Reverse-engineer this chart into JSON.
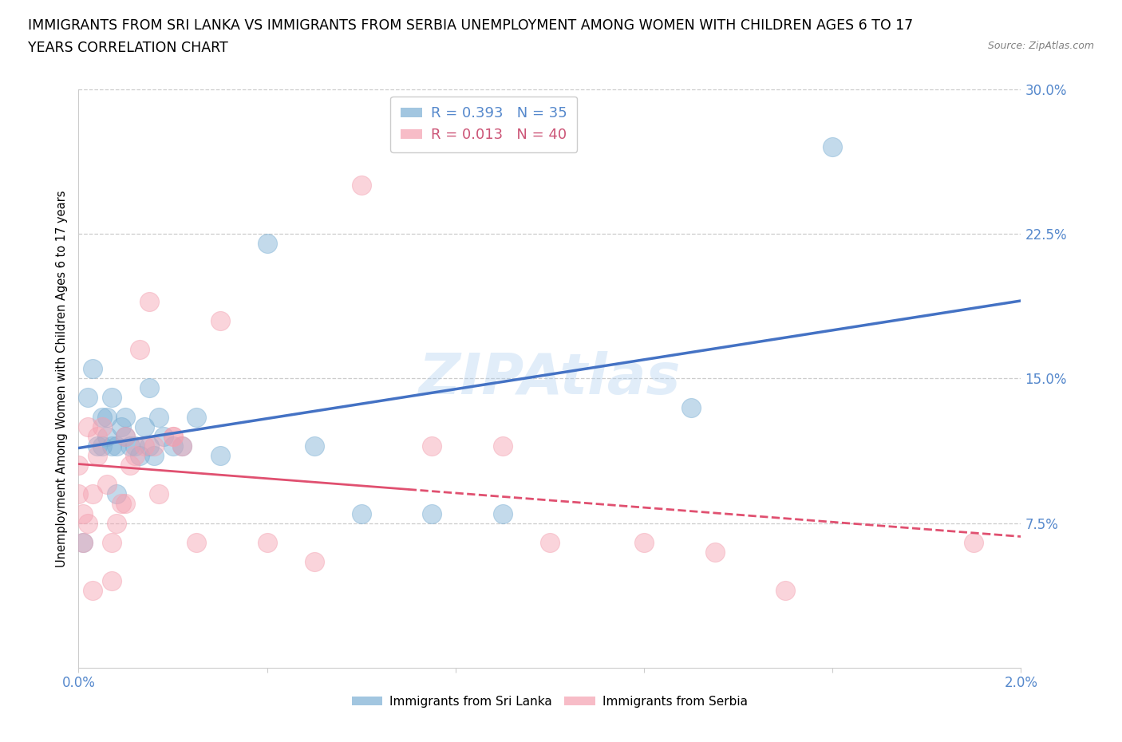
{
  "title_line1": "IMMIGRANTS FROM SRI LANKA VS IMMIGRANTS FROM SERBIA UNEMPLOYMENT AMONG WOMEN WITH CHILDREN AGES 6 TO 17",
  "title_line2": "YEARS CORRELATION CHART",
  "source": "Source: ZipAtlas.com",
  "ylabel": "Unemployment Among Women with Children Ages 6 to 17 years",
  "xlim": [
    0.0,
    0.02
  ],
  "ylim": [
    0.0,
    0.3
  ],
  "yticks": [
    0.075,
    0.15,
    0.225,
    0.3
  ],
  "ytick_labels": [
    "7.5%",
    "15.0%",
    "22.5%",
    "30.0%"
  ],
  "xticks": [
    0.0,
    0.004,
    0.008,
    0.012,
    0.016,
    0.02
  ],
  "xtick_labels": [
    "0.0%",
    "",
    "",
    "",
    "",
    "2.0%"
  ],
  "sri_lanka_color": "#7bafd4",
  "serbia_color": "#f4a0b0",
  "sri_lanka_label": "Immigrants from Sri Lanka",
  "serbia_label": "Immigrants from Serbia",
  "sri_lanka_R": "0.393",
  "sri_lanka_N": "35",
  "serbia_R": "0.013",
  "serbia_N": "40",
  "watermark": "ZIPAtlas",
  "reg_line_color_sl": "#4472c4",
  "reg_line_color_sr": "#e05070",
  "sri_lanka_x": [
    0.0001,
    0.0002,
    0.0003,
    0.0004,
    0.0005,
    0.0005,
    0.0006,
    0.0006,
    0.0007,
    0.0007,
    0.0008,
    0.0008,
    0.0009,
    0.001,
    0.001,
    0.0011,
    0.0012,
    0.0013,
    0.0014,
    0.0015,
    0.0015,
    0.0016,
    0.0017,
    0.0018,
    0.002,
    0.0022,
    0.0025,
    0.003,
    0.004,
    0.005,
    0.006,
    0.0075,
    0.009,
    0.013,
    0.016
  ],
  "sri_lanka_y": [
    0.065,
    0.14,
    0.155,
    0.115,
    0.115,
    0.13,
    0.12,
    0.13,
    0.115,
    0.14,
    0.115,
    0.09,
    0.125,
    0.12,
    0.13,
    0.115,
    0.115,
    0.11,
    0.125,
    0.115,
    0.145,
    0.11,
    0.13,
    0.12,
    0.115,
    0.115,
    0.13,
    0.11,
    0.22,
    0.115,
    0.08,
    0.08,
    0.08,
    0.135,
    0.27
  ],
  "serbia_x": [
    0.0,
    0.0,
    0.0001,
    0.0001,
    0.0002,
    0.0002,
    0.0003,
    0.0003,
    0.0004,
    0.0004,
    0.0005,
    0.0006,
    0.0007,
    0.0007,
    0.0008,
    0.0009,
    0.001,
    0.001,
    0.0011,
    0.0012,
    0.0013,
    0.0014,
    0.0015,
    0.0016,
    0.0017,
    0.002,
    0.002,
    0.0022,
    0.0025,
    0.003,
    0.004,
    0.005,
    0.006,
    0.0075,
    0.009,
    0.01,
    0.012,
    0.0135,
    0.015,
    0.019
  ],
  "serbia_y": [
    0.09,
    0.105,
    0.065,
    0.08,
    0.125,
    0.075,
    0.04,
    0.09,
    0.11,
    0.12,
    0.125,
    0.095,
    0.065,
    0.045,
    0.075,
    0.085,
    0.085,
    0.12,
    0.105,
    0.11,
    0.165,
    0.115,
    0.19,
    0.115,
    0.09,
    0.12,
    0.12,
    0.115,
    0.065,
    0.18,
    0.065,
    0.055,
    0.25,
    0.115,
    0.115,
    0.065,
    0.065,
    0.06,
    0.04,
    0.065
  ]
}
